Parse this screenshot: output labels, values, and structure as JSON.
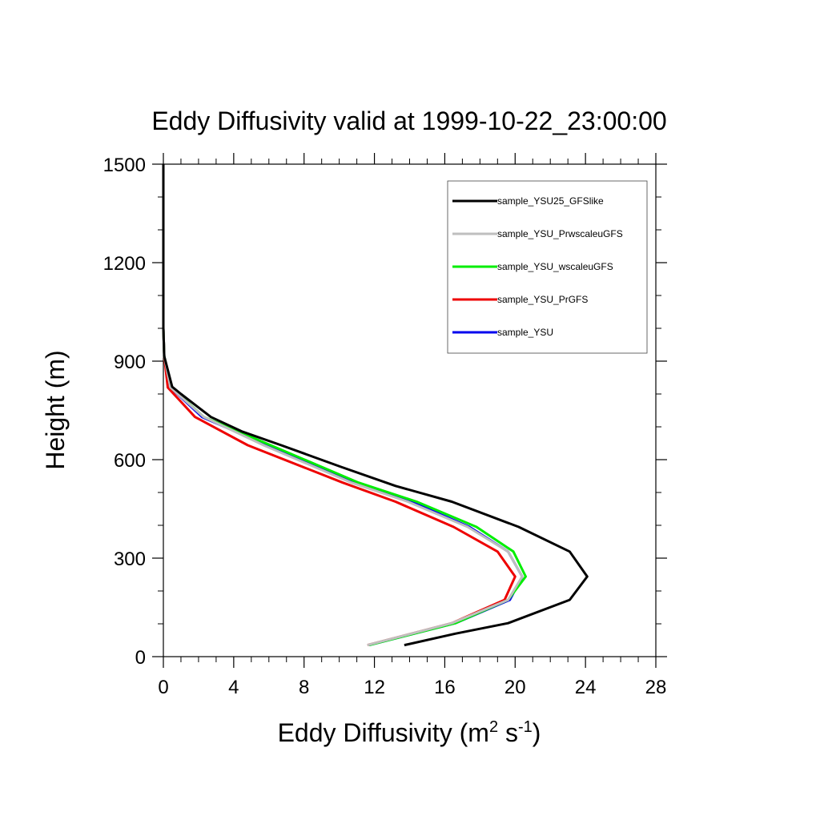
{
  "chart_data": {
    "type": "line",
    "title": "Eddy Diffusivity valid at 1999-10-22_23:00:00",
    "xlabel": {
      "base": "Eddy Diffusivity (m",
      "sup1": "2",
      "mid": " s",
      "sup2": "-1",
      "end": ")"
    },
    "ylabel": "Height (m)",
    "xlim": [
      0,
      28
    ],
    "ylim": [
      0,
      1500
    ],
    "xticks": [
      0,
      4,
      8,
      12,
      16,
      20,
      24,
      28
    ],
    "yticks": [
      0,
      300,
      600,
      900,
      1200,
      1500
    ],
    "xtick_labels": [
      "0",
      "4",
      "8",
      "12",
      "16",
      "20",
      "24",
      "28"
    ],
    "ytick_labels": [
      "0",
      "300",
      "600",
      "900",
      "1200",
      "1500"
    ],
    "legend_position": "top-right",
    "series": [
      {
        "name": "sample_YSU25_GFSlike",
        "color": "#000000",
        "points": [
          [
            13.7,
            35
          ],
          [
            16.6,
            70
          ],
          [
            19.6,
            102
          ],
          [
            23.1,
            173
          ],
          [
            24.1,
            244
          ],
          [
            23.1,
            320
          ],
          [
            20.2,
            395
          ],
          [
            16.4,
            472
          ],
          [
            13.2,
            520
          ],
          [
            10.1,
            578
          ],
          [
            6.7,
            644
          ],
          [
            4.5,
            685
          ],
          [
            2.7,
            730
          ],
          [
            1.0,
            800
          ],
          [
            0.5,
            822
          ],
          [
            0.05,
            915
          ],
          [
            0,
            1000
          ],
          [
            0,
            1500
          ]
        ]
      },
      {
        "name": "sample_YSU_PrwscaleuGFS",
        "color": "#bfbfbf",
        "points": [
          [
            11.6,
            35
          ],
          [
            16.4,
            102
          ],
          [
            19.6,
            173
          ],
          [
            20.4,
            244
          ],
          [
            19.6,
            320
          ],
          [
            17.3,
            395
          ],
          [
            13.9,
            472
          ],
          [
            10.7,
            530
          ],
          [
            5.7,
            644
          ],
          [
            2.3,
            730
          ],
          [
            0.4,
            820
          ],
          [
            0.05,
            915
          ],
          [
            0,
            1000
          ],
          [
            0,
            1500
          ]
        ]
      },
      {
        "name": "sample_YSU_wscaleuGFS",
        "color": "#00ee00",
        "points": [
          [
            11.7,
            35
          ],
          [
            16.6,
            102
          ],
          [
            19.6,
            173
          ],
          [
            20.6,
            244
          ],
          [
            19.9,
            320
          ],
          [
            17.8,
            395
          ],
          [
            14.4,
            472
          ],
          [
            11.1,
            530
          ],
          [
            6.1,
            644
          ],
          [
            2.3,
            730
          ],
          [
            0.45,
            820
          ],
          [
            0.05,
            915
          ],
          [
            0,
            1000
          ],
          [
            0,
            1500
          ]
        ]
      },
      {
        "name": "sample_YSU_PrGFS",
        "color": "#ee0000",
        "points": [
          [
            11.6,
            35
          ],
          [
            16.4,
            102
          ],
          [
            19.4,
            173
          ],
          [
            20.0,
            244
          ],
          [
            19.0,
            320
          ],
          [
            16.5,
            395
          ],
          [
            13.2,
            472
          ],
          [
            10.2,
            530
          ],
          [
            4.8,
            644
          ],
          [
            1.8,
            730
          ],
          [
            0.25,
            820
          ],
          [
            0.05,
            915
          ],
          [
            0,
            1000
          ],
          [
            0,
            1500
          ]
        ]
      },
      {
        "name": "sample_YSU",
        "color": "#0000ee",
        "points": [
          [
            11.7,
            35
          ],
          [
            16.6,
            102
          ],
          [
            19.7,
            173
          ],
          [
            20.4,
            244
          ],
          [
            19.6,
            320
          ],
          [
            17.4,
            395
          ],
          [
            14.1,
            472
          ],
          [
            10.9,
            530
          ],
          [
            5.9,
            644
          ],
          [
            2.2,
            730
          ],
          [
            0.4,
            820
          ],
          [
            0.05,
            915
          ],
          [
            0,
            1000
          ],
          [
            0,
            1500
          ]
        ]
      }
    ]
  }
}
